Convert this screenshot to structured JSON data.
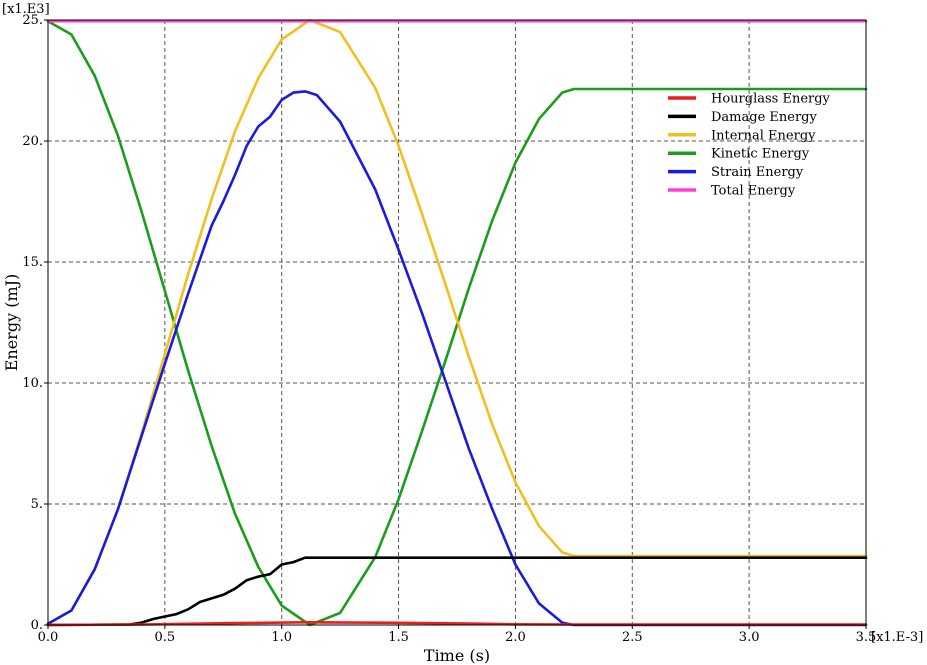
{
  "chart_data": {
    "type": "line",
    "xlabel": "Time (s)",
    "ylabel": "Energy (mJ)",
    "x_multiplier": "[x1.E-3]",
    "y_multiplier": "[x1.E3]",
    "xlim": [
      0,
      3.5
    ],
    "ylim": [
      0,
      25
    ],
    "grid": true,
    "legend_position": "top-right",
    "x_ticks": [
      {
        "value": 0.0,
        "label": "0.0"
      },
      {
        "value": 0.5,
        "label": "0.5"
      },
      {
        "value": 1.0,
        "label": "1.0"
      },
      {
        "value": 1.5,
        "label": "1.5"
      },
      {
        "value": 2.0,
        "label": "2.0"
      },
      {
        "value": 2.5,
        "label": "2.5"
      },
      {
        "value": 3.0,
        "label": "3.0"
      },
      {
        "value": 3.5,
        "label": "3.5"
      }
    ],
    "y_ticks": [
      {
        "value": 0,
        "label": "0."
      },
      {
        "value": 5,
        "label": "5."
      },
      {
        "value": 10,
        "label": "10."
      },
      {
        "value": 15,
        "label": "15."
      },
      {
        "value": 20,
        "label": "20."
      },
      {
        "value": 25,
        "label": "25."
      }
    ],
    "series": [
      {
        "name": "Hourglass Energy",
        "color": "#e8201c",
        "x": [
          0,
          0.4,
          0.6,
          0.8,
          1.0,
          1.1,
          1.3,
          1.5,
          1.8,
          2.0,
          2.25,
          2.5,
          3.0,
          3.5
        ],
        "y": [
          0,
          0.02,
          0.05,
          0.08,
          0.1,
          0.11,
          0.1,
          0.09,
          0.06,
          0.03,
          0.02,
          0.02,
          0.02,
          0.02
        ]
      },
      {
        "name": "Damage Energy",
        "color": "#000000",
        "x": [
          0,
          0.35,
          0.4,
          0.45,
          0.5,
          0.55,
          0.6,
          0.65,
          0.7,
          0.75,
          0.8,
          0.85,
          0.9,
          0.95,
          1.0,
          1.05,
          1.1,
          1.5,
          2.0,
          2.5,
          3.0,
          3.5
        ],
        "y": [
          0,
          0.02,
          0.1,
          0.25,
          0.35,
          0.45,
          0.65,
          0.95,
          1.1,
          1.25,
          1.5,
          1.85,
          2.0,
          2.1,
          2.5,
          2.6,
          2.78,
          2.78,
          2.78,
          2.78,
          2.78,
          2.78
        ]
      },
      {
        "name": "Internal Energy",
        "color": "#f0c020",
        "x": [
          0,
          0.1,
          0.2,
          0.3,
          0.4,
          0.5,
          0.6,
          0.7,
          0.8,
          0.9,
          1.0,
          1.12,
          1.25,
          1.4,
          1.5,
          1.6,
          1.7,
          1.8,
          1.9,
          2.0,
          2.1,
          2.2,
          2.25,
          2.5,
          3.0,
          3.5
        ],
        "y": [
          0.05,
          0.6,
          2.3,
          4.8,
          7.9,
          11.2,
          14.5,
          17.6,
          20.4,
          22.6,
          24.2,
          25.0,
          24.5,
          22.2,
          19.8,
          17.0,
          14.1,
          11.1,
          8.3,
          5.9,
          4.1,
          3.0,
          2.85,
          2.85,
          2.85,
          2.85
        ]
      },
      {
        "name": "Kinetic Energy",
        "color": "#1a9e1a",
        "x": [
          0,
          0.1,
          0.2,
          0.3,
          0.4,
          0.5,
          0.6,
          0.7,
          0.8,
          0.9,
          1.0,
          1.12,
          1.25,
          1.4,
          1.5,
          1.6,
          1.7,
          1.8,
          1.9,
          2.0,
          2.1,
          2.2,
          2.25,
          2.5,
          3.0,
          3.5
        ],
        "y": [
          24.95,
          24.4,
          22.7,
          20.2,
          17.1,
          13.8,
          10.5,
          7.4,
          4.6,
          2.4,
          0.8,
          0.0,
          0.5,
          2.8,
          5.2,
          8.0,
          10.9,
          13.9,
          16.7,
          19.1,
          20.9,
          22.0,
          22.15,
          22.15,
          22.15,
          22.15
        ]
      },
      {
        "name": "Strain Energy",
        "color": "#1a1ae0",
        "x": [
          0,
          0.1,
          0.2,
          0.3,
          0.4,
          0.5,
          0.6,
          0.7,
          0.75,
          0.8,
          0.85,
          0.9,
          0.95,
          1.0,
          1.05,
          1.1,
          1.15,
          1.25,
          1.4,
          1.5,
          1.6,
          1.7,
          1.8,
          1.9,
          2.0,
          2.1,
          2.2,
          2.25,
          2.5,
          3.0,
          3.5
        ],
        "y": [
          0.05,
          0.6,
          2.3,
          4.8,
          7.8,
          10.8,
          13.7,
          16.5,
          17.5,
          18.6,
          19.8,
          20.6,
          21.0,
          21.7,
          22.0,
          22.05,
          21.9,
          20.8,
          18.0,
          15.5,
          12.9,
          10.1,
          7.3,
          4.8,
          2.5,
          0.9,
          0.1,
          0.0,
          0.0,
          0.0,
          0.0
        ]
      },
      {
        "name": "Total Energy",
        "color": "#ff3fcf",
        "x": [
          0,
          0.5,
          1.0,
          1.5,
          2.0,
          2.5,
          3.0,
          3.5
        ],
        "y": [
          24.95,
          24.95,
          24.95,
          24.95,
          24.95,
          24.95,
          24.95,
          24.95
        ]
      }
    ]
  }
}
